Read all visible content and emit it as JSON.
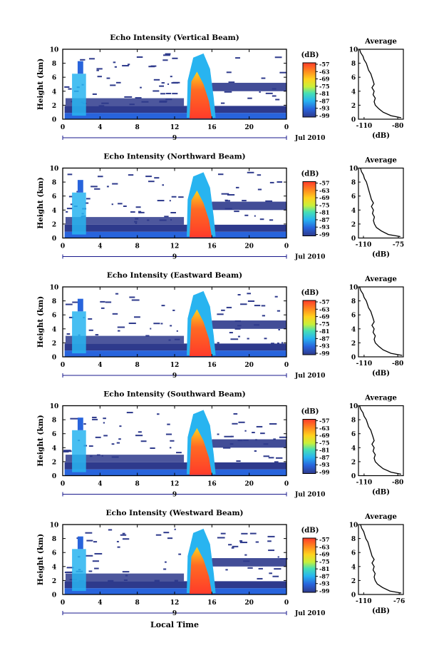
{
  "figure": {
    "date_label": "Jul 2010",
    "xlabel": "Local Time",
    "colorbar_unit": "(dB)",
    "colorbar_ticks": [
      "-57",
      "-63",
      "-69",
      "-75",
      "-81",
      "-87",
      "-93",
      "-99"
    ],
    "colors": {
      "background_low": "#2e3a8c",
      "storm_core": "#ff3b2a",
      "frame": "#000000"
    }
  },
  "chart_data": [
    {
      "type": "heatmap",
      "title": "Echo Intensity (Vertical Beam)",
      "ylabel": "Height (km)",
      "xlim": [
        0,
        24
      ],
      "ylim": [
        0,
        10
      ],
      "xticks": [
        "0",
        "4",
        "8",
        "12",
        "16",
        "20",
        "0"
      ],
      "yticks": [
        "0",
        "2",
        "4",
        "6",
        "8",
        "10"
      ],
      "day_label": "9",
      "colorbar": {
        "unit": "(dB)",
        "ticks": [
          "-57",
          "-63",
          "-69",
          "-75",
          "-81",
          "-87",
          "-93",
          "-99"
        ]
      },
      "profile": {
        "title": "Average",
        "xlabel": "(dB)",
        "xticks": [
          "-110",
          "-80"
        ],
        "xlim": [
          -115,
          -75
        ],
        "ylim": [
          0,
          10
        ],
        "yticks": [
          "0",
          "2",
          "4",
          "6",
          "8",
          "10"
        ],
        "db": [
          -77,
          -86,
          -93,
          -97,
          -100,
          -101,
          -100,
          -102,
          -101,
          -103,
          -101,
          -102,
          -103,
          -104,
          -106,
          -107,
          -108,
          -110,
          -111,
          -113,
          -114
        ],
        "height": [
          0.2,
          0.5,
          1.0,
          1.5,
          2.0,
          2.5,
          3.0,
          3.5,
          4.0,
          4.5,
          5.0,
          5.5,
          6.0,
          6.5,
          7.0,
          7.5,
          8.0,
          8.5,
          9.0,
          9.5,
          10.0
        ]
      }
    },
    {
      "type": "heatmap",
      "title": "Echo Intensity (Northward Beam)",
      "ylabel": "Height (km)",
      "xlim": [
        0,
        24
      ],
      "ylim": [
        0,
        10
      ],
      "xticks": [
        "0",
        "4",
        "8",
        "12",
        "16",
        "20",
        "0"
      ],
      "yticks": [
        "0",
        "2",
        "4",
        "6",
        "8",
        "10"
      ],
      "day_label": "9",
      "colorbar": {
        "unit": "(dB)",
        "ticks": [
          "-57",
          "-63",
          "-69",
          "-75",
          "-81",
          "-87",
          "-93",
          "-99"
        ]
      },
      "profile": {
        "title": "Average",
        "xlabel": "(dB)",
        "xticks": [
          "-110",
          "-75"
        ],
        "xlim": [
          -115,
          -70
        ],
        "ylim": [
          0,
          10
        ],
        "yticks": [
          "0",
          "2",
          "4",
          "6",
          "8",
          "10"
        ],
        "db": [
          -73,
          -85,
          -92,
          -97,
          -99,
          -100,
          -99,
          -101,
          -100,
          -102,
          -100,
          -102,
          -103,
          -104,
          -105,
          -106,
          -107,
          -109,
          -110,
          -112,
          -113
        ],
        "height": [
          0.2,
          0.5,
          1.0,
          1.5,
          2.0,
          2.5,
          3.0,
          3.5,
          4.0,
          4.5,
          5.0,
          5.5,
          6.0,
          6.5,
          7.0,
          7.5,
          8.0,
          8.5,
          9.0,
          9.5,
          10.0
        ]
      }
    },
    {
      "type": "heatmap",
      "title": "Echo Intensity (Eastward Beam)",
      "ylabel": "Height (km)",
      "xlim": [
        0,
        24
      ],
      "ylim": [
        0,
        10
      ],
      "xticks": [
        "0",
        "4",
        "8",
        "12",
        "16",
        "20",
        "0"
      ],
      "yticks": [
        "0",
        "2",
        "4",
        "6",
        "8",
        "10"
      ],
      "day_label": "9",
      "colorbar": {
        "unit": "(dB)",
        "ticks": [
          "-57",
          "-63",
          "-69",
          "-75",
          "-81",
          "-87",
          "-93",
          "-99"
        ]
      },
      "profile": {
        "title": "Average",
        "xlabel": "(dB)",
        "xticks": [
          "-110",
          "-80"
        ],
        "xlim": [
          -115,
          -75
        ],
        "ylim": [
          0,
          10
        ],
        "yticks": [
          "0",
          "2",
          "4",
          "6",
          "8",
          "10"
        ],
        "db": [
          -76,
          -86,
          -93,
          -97,
          -100,
          -101,
          -100,
          -102,
          -101,
          -103,
          -101,
          -102,
          -103,
          -104,
          -106,
          -107,
          -108,
          -110,
          -111,
          -113,
          -114
        ],
        "height": [
          0.2,
          0.5,
          1.0,
          1.5,
          2.0,
          2.5,
          3.0,
          3.5,
          4.0,
          4.5,
          5.0,
          5.5,
          6.0,
          6.5,
          7.0,
          7.5,
          8.0,
          8.5,
          9.0,
          9.5,
          10.0
        ]
      }
    },
    {
      "type": "heatmap",
      "title": "Echo Intensity (Southward Beam)",
      "ylabel": "Height (km)",
      "xlim": [
        0,
        24
      ],
      "ylim": [
        0,
        10
      ],
      "xticks": [
        "0",
        "4",
        "8",
        "12",
        "16",
        "20",
        "0"
      ],
      "yticks": [
        "0",
        "2",
        "4",
        "6",
        "8",
        "10"
      ],
      "day_label": "9",
      "colorbar": {
        "unit": "(dB)",
        "ticks": [
          "-57",
          "-63",
          "-69",
          "-75",
          "-81",
          "-87",
          "-93",
          "-99"
        ]
      },
      "profile": {
        "title": "Average",
        "xlabel": "(dB)",
        "xticks": [
          "-110",
          "-80"
        ],
        "xlim": [
          -115,
          -75
        ],
        "ylim": [
          0,
          10
        ],
        "yticks": [
          "0",
          "2",
          "4",
          "6",
          "8",
          "10"
        ],
        "db": [
          -77,
          -86,
          -93,
          -97,
          -100,
          -101,
          -100,
          -102,
          -101,
          -103,
          -101,
          -102,
          -103,
          -104,
          -106,
          -107,
          -108,
          -110,
          -111,
          -113,
          -114
        ],
        "height": [
          0.2,
          0.5,
          1.0,
          1.5,
          2.0,
          2.5,
          3.0,
          3.5,
          4.0,
          4.5,
          5.0,
          5.5,
          6.0,
          6.5,
          7.0,
          7.5,
          8.0,
          8.5,
          9.0,
          9.5,
          10.0
        ]
      }
    },
    {
      "type": "heatmap",
      "title": "Echo Intensity (Westward Beam)",
      "ylabel": "Height (km)",
      "xlim": [
        0,
        24
      ],
      "ylim": [
        0,
        10
      ],
      "xticks": [
        "0",
        "4",
        "8",
        "12",
        "16",
        "20",
        "0"
      ],
      "yticks": [
        "0",
        "2",
        "4",
        "6",
        "8",
        "10"
      ],
      "day_label": "9",
      "colorbar": {
        "unit": "(dB)",
        "ticks": [
          "-57",
          "-63",
          "-69",
          "-75",
          "-81",
          "-87",
          "-93",
          "-99"
        ]
      },
      "profile": {
        "title": "Average",
        "xlabel": "(dB)",
        "xticks": [
          "-110",
          "-76"
        ],
        "xlim": [
          -115,
          -72
        ],
        "ylim": [
          0,
          10
        ],
        "yticks": [
          "0",
          "2",
          "4",
          "6",
          "8",
          "10"
        ],
        "db": [
          -74,
          -85,
          -92,
          -97,
          -99,
          -100,
          -99,
          -101,
          -100,
          -102,
          -100,
          -102,
          -103,
          -104,
          -105,
          -106,
          -108,
          -109,
          -110,
          -112,
          -113
        ],
        "height": [
          0.2,
          0.5,
          1.0,
          1.5,
          2.0,
          2.5,
          3.0,
          3.5,
          4.0,
          4.5,
          5.0,
          5.5,
          6.0,
          6.5,
          7.0,
          7.5,
          8.0,
          8.5,
          9.0,
          9.5,
          10.0
        ]
      }
    }
  ]
}
